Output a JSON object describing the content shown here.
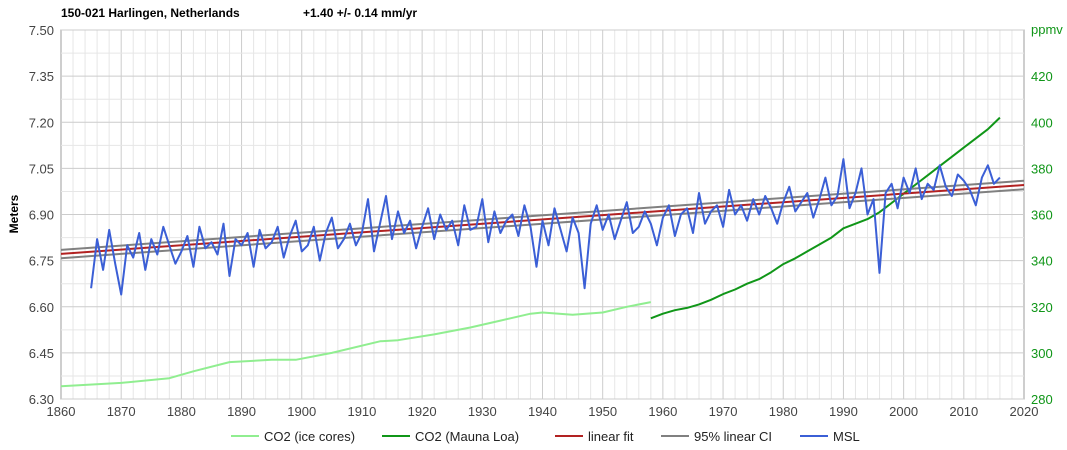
{
  "header": {
    "station": "150-021 Harlingen, Netherlands",
    "trend": "+1.40 +/- 0.14 mm/yr"
  },
  "chart_data": {
    "type": "line",
    "title": "150-021 Harlingen, Netherlands",
    "subtitle": "+1.40 +/- 0.14 mm/yr",
    "xlabel": "",
    "ylabel": "Meters",
    "y2label": "ppmv",
    "xlim": [
      1860,
      2020
    ],
    "ylim": [
      6.3,
      7.5
    ],
    "y2lim": [
      280,
      440
    ],
    "x_ticks": [
      "1860",
      "1870",
      "1880",
      "1890",
      "1900",
      "1910",
      "1920",
      "1930",
      "1940",
      "1950",
      "1960",
      "1970",
      "1980",
      "1990",
      "2000",
      "2010",
      "2020"
    ],
    "y_ticks": [
      "6.30",
      "6.45",
      "6.60",
      "6.75",
      "6.90",
      "7.05",
      "7.20",
      "7.35",
      "7.50"
    ],
    "y2_ticks": [
      "280",
      "300",
      "320",
      "340",
      "360",
      "380",
      "400",
      "420"
    ],
    "grid": true,
    "legend_position": "bottom",
    "colors": {
      "co2_ice": "#90ee90",
      "co2_ml": "#109618",
      "linear_fit": "#b22222",
      "ci": "#808080",
      "msl": "#3b5fd6"
    },
    "series": [
      {
        "name": "CO2 (ice cores)",
        "axis": "right",
        "x": [
          1860,
          1870,
          1878,
          1882,
          1888,
          1895,
          1899,
          1905,
          1913,
          1916,
          1922,
          1928,
          1933,
          1938,
          1940,
          1945,
          1950,
          1954,
          1958
        ],
        "values": [
          285.5,
          287,
          289,
          292,
          296,
          297,
          297,
          300,
          305,
          305.5,
          308,
          311,
          314,
          317,
          317.5,
          316.5,
          317.5,
          320,
          322
        ]
      },
      {
        "name": "CO2 (Mauna Loa)",
        "axis": "right",
        "x": [
          1958,
          1960,
          1962,
          1964,
          1966,
          1968,
          1970,
          1972,
          1974,
          1976,
          1978,
          1980,
          1982,
          1984,
          1986,
          1988,
          1990,
          1992,
          1994,
          1996,
          1998,
          2000,
          2002,
          2004,
          2006,
          2008,
          2010,
          2012,
          2014,
          2016
        ],
        "values": [
          315,
          317,
          318.5,
          319.5,
          321,
          323,
          325.5,
          327.5,
          330,
          332,
          335,
          338.5,
          341,
          344,
          347,
          350,
          354,
          356,
          358,
          361,
          365,
          369,
          373,
          377,
          381,
          385,
          389,
          393,
          397,
          402
        ]
      },
      {
        "name": "linear fit",
        "axis": "left",
        "x": [
          1860,
          2020
        ],
        "values": [
          6.772,
          6.996
        ]
      },
      {
        "name": "95% linear CI",
        "axis": "left",
        "upper": {
          "x": [
            1860,
            2020
          ],
          "values": [
            6.785,
            7.01
          ]
        },
        "lower": {
          "x": [
            1860,
            2020
          ],
          "values": [
            6.758,
            6.982
          ]
        }
      },
      {
        "name": "MSL",
        "axis": "left",
        "x": [
          1865,
          1866,
          1867,
          1868,
          1869,
          1870,
          1871,
          1872,
          1873,
          1874,
          1875,
          1876,
          1877,
          1878,
          1879,
          1880,
          1881,
          1882,
          1883,
          1884,
          1885,
          1886,
          1887,
          1888,
          1889,
          1890,
          1891,
          1892,
          1893,
          1894,
          1895,
          1896,
          1897,
          1898,
          1899,
          1900,
          1901,
          1902,
          1903,
          1904,
          1905,
          1906,
          1907,
          1908,
          1909,
          1910,
          1911,
          1912,
          1913,
          1914,
          1915,
          1916,
          1917,
          1918,
          1919,
          1920,
          1921,
          1922,
          1923,
          1924,
          1925,
          1926,
          1927,
          1928,
          1929,
          1930,
          1931,
          1932,
          1933,
          1934,
          1935,
          1936,
          1937,
          1938,
          1939,
          1940,
          1941,
          1942,
          1943,
          1944,
          1945,
          1946,
          1947,
          1948,
          1949,
          1950,
          1951,
          1952,
          1953,
          1954,
          1955,
          1956,
          1957,
          1958,
          1959,
          1960,
          1961,
          1962,
          1963,
          1964,
          1965,
          1966,
          1967,
          1968,
          1969,
          1970,
          1971,
          1972,
          1973,
          1974,
          1975,
          1976,
          1977,
          1978,
          1979,
          1980,
          1981,
          1982,
          1983,
          1984,
          1985,
          1986,
          1987,
          1988,
          1989,
          1990,
          1991,
          1992,
          1993,
          1994,
          1995,
          1996,
          1997,
          1998,
          1999,
          2000,
          2001,
          2002,
          2003,
          2004,
          2005,
          2006,
          2007,
          2008,
          2009,
          2010,
          2011,
          2012,
          2013,
          2014,
          2015,
          2016
        ],
        "values": [
          6.66,
          6.82,
          6.72,
          6.85,
          6.74,
          6.64,
          6.8,
          6.76,
          6.84,
          6.72,
          6.82,
          6.77,
          6.86,
          6.8,
          6.74,
          6.78,
          6.83,
          6.73,
          6.86,
          6.79,
          6.81,
          6.77,
          6.87,
          6.7,
          6.82,
          6.8,
          6.84,
          6.73,
          6.85,
          6.79,
          6.81,
          6.86,
          6.76,
          6.83,
          6.88,
          6.78,
          6.8,
          6.86,
          6.75,
          6.84,
          6.89,
          6.79,
          6.82,
          6.87,
          6.8,
          6.84,
          6.95,
          6.78,
          6.87,
          6.96,
          6.82,
          6.91,
          6.84,
          6.88,
          6.79,
          6.86,
          6.92,
          6.82,
          6.9,
          6.85,
          6.88,
          6.8,
          6.93,
          6.85,
          6.86,
          6.95,
          6.81,
          6.91,
          6.84,
          6.88,
          6.9,
          6.83,
          6.93,
          6.86,
          6.73,
          6.88,
          6.8,
          6.92,
          6.85,
          6.78,
          6.89,
          6.84,
          6.66,
          6.87,
          6.93,
          6.85,
          6.9,
          6.82,
          6.88,
          6.94,
          6.84,
          6.86,
          6.91,
          6.87,
          6.8,
          6.89,
          6.93,
          6.83,
          6.9,
          6.92,
          6.84,
          6.97,
          6.87,
          6.91,
          6.93,
          6.86,
          6.98,
          6.9,
          6.93,
          6.88,
          6.95,
          6.9,
          6.96,
          6.92,
          6.87,
          6.94,
          6.99,
          6.91,
          6.94,
          6.97,
          6.89,
          6.95,
          7.02,
          6.93,
          6.96,
          7.08,
          6.92,
          6.97,
          7.05,
          6.9,
          6.95,
          6.71,
          6.97,
          7.0,
          6.92,
          7.02,
          6.97,
          7.05,
          6.95,
          7.0,
          6.98,
          7.06,
          6.99,
          6.96,
          7.03,
          7.01,
          6.98,
          6.93,
          7.02,
          7.06,
          7.0,
          7.02
        ]
      }
    ]
  }
}
